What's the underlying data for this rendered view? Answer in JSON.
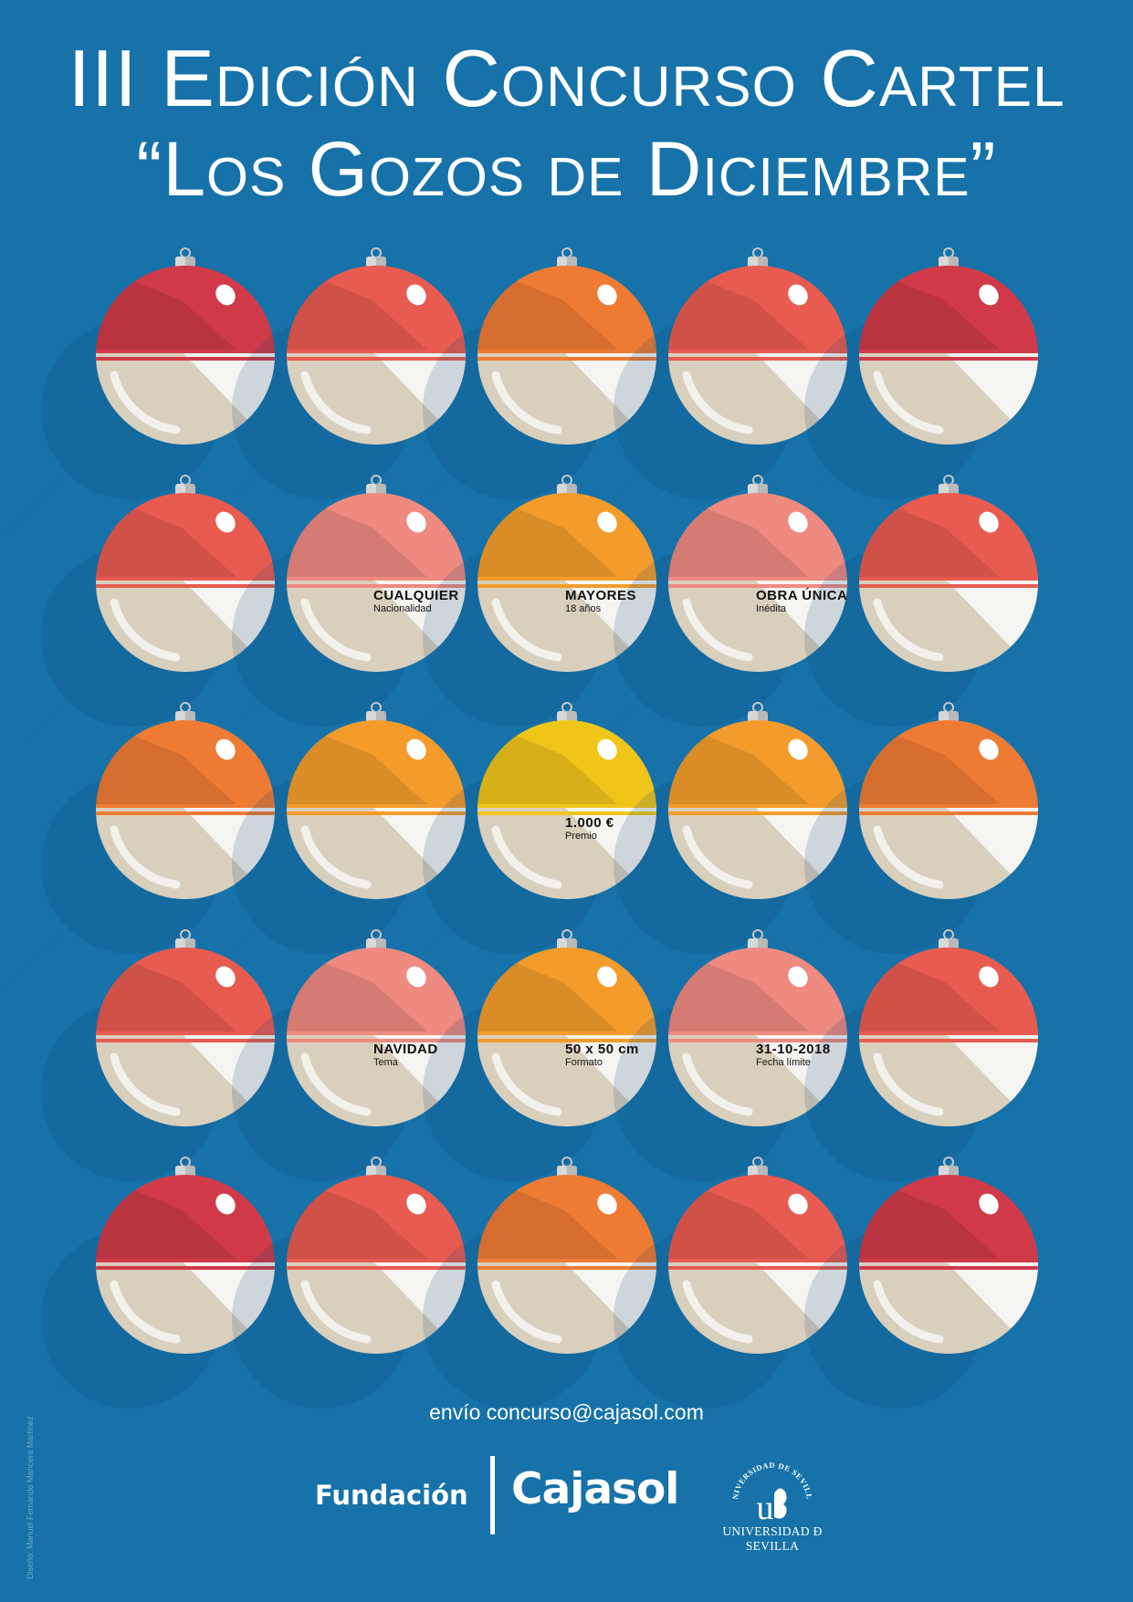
{
  "title": {
    "line1": "III Edición Concurso Cartel",
    "line2": "“Los Gozos de Diciembre”"
  },
  "palette": {
    "background": "#1672a8",
    "red": "#d03a48",
    "coral": "#e85b50",
    "orange": "#ee7b34",
    "pink": "#ef8a80",
    "amber": "#f39c2c",
    "yellow": "#f0c51a",
    "bulb_base": "#d9cfbd",
    "bulb_highlight": "#f4f4f1",
    "cap_metal": "#b9b9b9"
  },
  "ornament_grid": [
    [
      "red",
      "coral",
      "orange",
      "coral",
      "red"
    ],
    [
      "coral",
      "pink",
      "amber",
      "pink",
      "coral"
    ],
    [
      "orange",
      "amber",
      "yellow",
      "amber",
      "orange"
    ],
    [
      "coral",
      "pink",
      "amber",
      "pink",
      "coral"
    ],
    [
      "red",
      "coral",
      "orange",
      "coral",
      "red"
    ]
  ],
  "info": [
    {
      "title": "CUALQUIER",
      "subtitle": "Nacionalidad"
    },
    {
      "title": "MAYORES",
      "subtitle": "18 años"
    },
    {
      "title": "OBRA ÚNICA",
      "subtitle": "Inédita"
    },
    {
      "title": "1.000 €",
      "subtitle": "Premio"
    },
    {
      "title": "NAVIDAD",
      "subtitle": "Tema"
    },
    {
      "title": "50 x 50 cm",
      "subtitle": "Formato"
    },
    {
      "title": "31-10-2018",
      "subtitle": "Fecha límite"
    }
  ],
  "contact": "envío concurso@cajasol.com",
  "logos": {
    "fundacion": "Fundación",
    "cajasol": "Cajasol",
    "university": "UNIVERSIDAD Ð SEVILLA",
    "university_seal_text": "UNIVERSIDAD DE SEVILLA"
  },
  "credit": "Diseño: Manuel Fernando Mancera Martínez"
}
